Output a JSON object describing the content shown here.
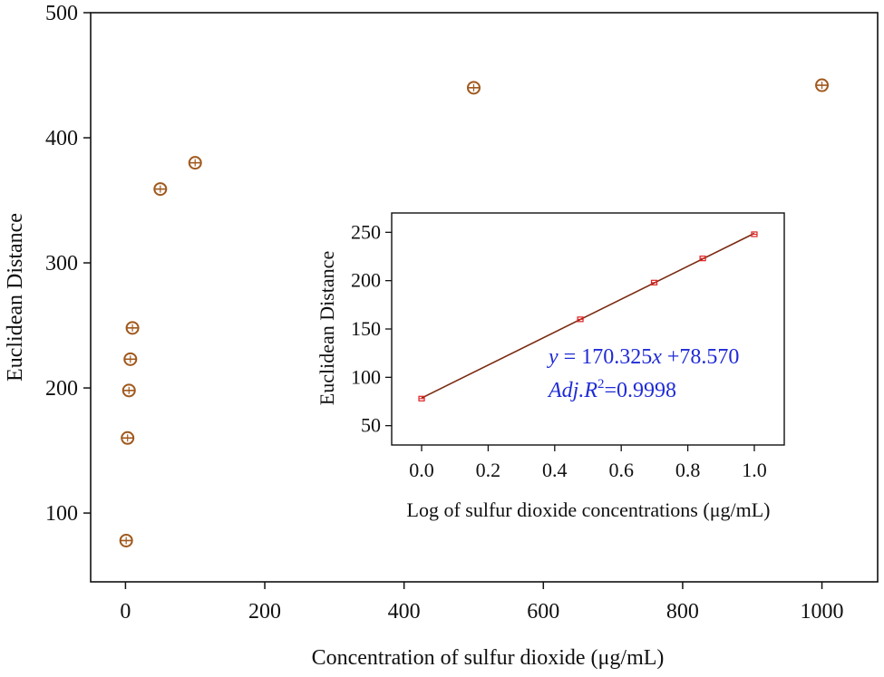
{
  "chart_data": [
    {
      "type": "scatter",
      "xlabel": "Concentration of sulfur dioxide  (μg/mL)",
      "ylabel": "Euclidean Distance",
      "xlim": [
        -50,
        1080
      ],
      "ylim": [
        45,
        500
      ],
      "xticks": [
        "0",
        "200",
        "400",
        "600",
        "800",
        "1000"
      ],
      "xtick_values": [
        0,
        200,
        400,
        600,
        800,
        1000
      ],
      "yticks": [
        "100",
        "200",
        "300",
        "400",
        "500"
      ],
      "ytick_values": [
        100,
        200,
        300,
        400,
        500
      ],
      "marker_color": "#a0581c",
      "series": [
        {
          "x": [
            1,
            3,
            5,
            7,
            10,
            50,
            100,
            500,
            1000
          ],
          "y": [
            78,
            160,
            198,
            223,
            248,
            359,
            380,
            440,
            442
          ]
        }
      ]
    },
    {
      "type": "line",
      "xlabel": "Log of sulfur dioxide concentrations  (μg/mL)",
      "ylabel": "Euclidean Distance",
      "xlim": [
        -0.09,
        1.09
      ],
      "ylim": [
        30,
        270
      ],
      "xticks": [
        "0.0",
        "0.2",
        "0.4",
        "0.6",
        "0.8",
        "1.0"
      ],
      "xtick_values": [
        0,
        0.2,
        0.4,
        0.6,
        0.8,
        1.0
      ],
      "yticks": [
        "50",
        "100",
        "150",
        "200",
        "250"
      ],
      "ytick_values": [
        50,
        100,
        150,
        200,
        250
      ],
      "marker_color": "#e02020",
      "line_color": "#7a2a10",
      "series": [
        {
          "x": [
            0,
            0.477,
            0.699,
            0.845,
            1.0
          ],
          "y": [
            78,
            160,
            198,
            223,
            248
          ]
        }
      ],
      "fit": {
        "slope": 170.325,
        "intercept": 78.57
      },
      "annotations": {
        "equation_y": "y",
        "equation_eq": " = 170.325",
        "equation_x": "x",
        "equation_rest": " +78.570",
        "r2_prefix": "Adj.R",
        "r2_sup": "2",
        "r2_value": "=0.9998"
      }
    }
  ]
}
